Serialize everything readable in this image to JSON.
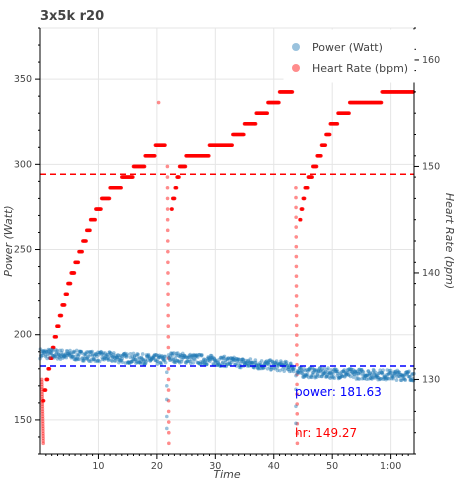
{
  "chart_data": {
    "type": "scatter",
    "title": "3x5k r20",
    "xlabel": "Time",
    "ylabel_left": "Power (Watt)",
    "ylabel_right": "Heart Rate (bpm)",
    "x_unit": "minutes",
    "xlim": [
      0,
      64
    ],
    "ylim_left": [
      130,
      380
    ],
    "ylim_right": [
      123,
      163
    ],
    "x_ticks": [
      10,
      20,
      30,
      40,
      50,
      60
    ],
    "x_tick_labels": [
      "10",
      "20",
      "30",
      "40",
      "50",
      "1:00"
    ],
    "y_ticks_left": [
      150,
      200,
      250,
      300,
      350
    ],
    "y_ticks_right": [
      130,
      140,
      150,
      160
    ],
    "grid": true,
    "legend_position": "top-right",
    "series": [
      {
        "name": "Power (Watt)",
        "axis": "left",
        "color": "#1f77b4",
        "segments": [
          {
            "x_start": 0,
            "x_end": 21.5,
            "y_start": 189,
            "y_end": 185,
            "jitter": 3
          },
          {
            "x_start": 22,
            "x_end": 43.5,
            "y_start": 187,
            "y_end": 181,
            "jitter": 3
          },
          {
            "x_start": 44,
            "x_end": 64,
            "y_start": 178,
            "y_end": 176,
            "jitter": 3
          }
        ],
        "dips": [
          {
            "x": 21.7,
            "values": [
              178,
              170,
              162,
              152,
              145
            ]
          },
          {
            "x": 43.8,
            "values": [
              176,
              168,
              158,
              148
            ]
          }
        ]
      },
      {
        "name": "Heart Rate (bpm)",
        "axis": "right",
        "color": "#ff0000",
        "segments": [
          [
            [
              0.5,
              128
            ],
            [
              1.5,
              131
            ],
            [
              3,
              135
            ],
            [
              5,
              139
            ],
            [
              7,
              142
            ],
            [
              9,
              145
            ],
            [
              11,
              147
            ],
            [
              13,
              148
            ],
            [
              15,
              149
            ],
            [
              17,
              150
            ],
            [
              19,
              151
            ],
            [
              20.5,
              152
            ],
            [
              21.5,
              152
            ]
          ],
          [
            [
              22.5,
              146
            ],
            [
              24,
              150
            ],
            [
              26,
              151
            ],
            [
              28,
              151
            ],
            [
              30,
              152
            ],
            [
              32,
              152
            ],
            [
              34,
              153
            ],
            [
              36,
              154
            ],
            [
              38,
              155
            ],
            [
              40,
              156
            ],
            [
              42,
              157
            ],
            [
              43.3,
              157
            ]
          ],
          [
            [
              44.5,
              145
            ],
            [
              45.5,
              148
            ],
            [
              47,
              150
            ],
            [
              48.5,
              152
            ],
            [
              50,
              154
            ],
            [
              52,
              155
            ],
            [
              54,
              156
            ],
            [
              57,
              156
            ],
            [
              60,
              157
            ],
            [
              62,
              157
            ],
            [
              64,
              157
            ]
          ]
        ],
        "drops": [
          {
            "x": 0.3,
            "from": 130,
            "to": 124
          },
          {
            "x": 21.8,
            "from": 150,
            "to": 124
          },
          {
            "x": 43.8,
            "from": 148,
            "to": 124
          }
        ],
        "outliers": [
          [
            20.3,
            156
          ]
        ]
      }
    ],
    "mean_lines": [
      {
        "label": "power",
        "axis": "left",
        "value": 181.63,
        "color": "#0000ff",
        "style": "dashed"
      },
      {
        "label": "hr",
        "axis": "right",
        "value": 149.27,
        "color": "#ff0000",
        "style": "dashed"
      }
    ],
    "annotations": {
      "power": "power: 181.63",
      "hr": "hr: 149.27"
    }
  }
}
